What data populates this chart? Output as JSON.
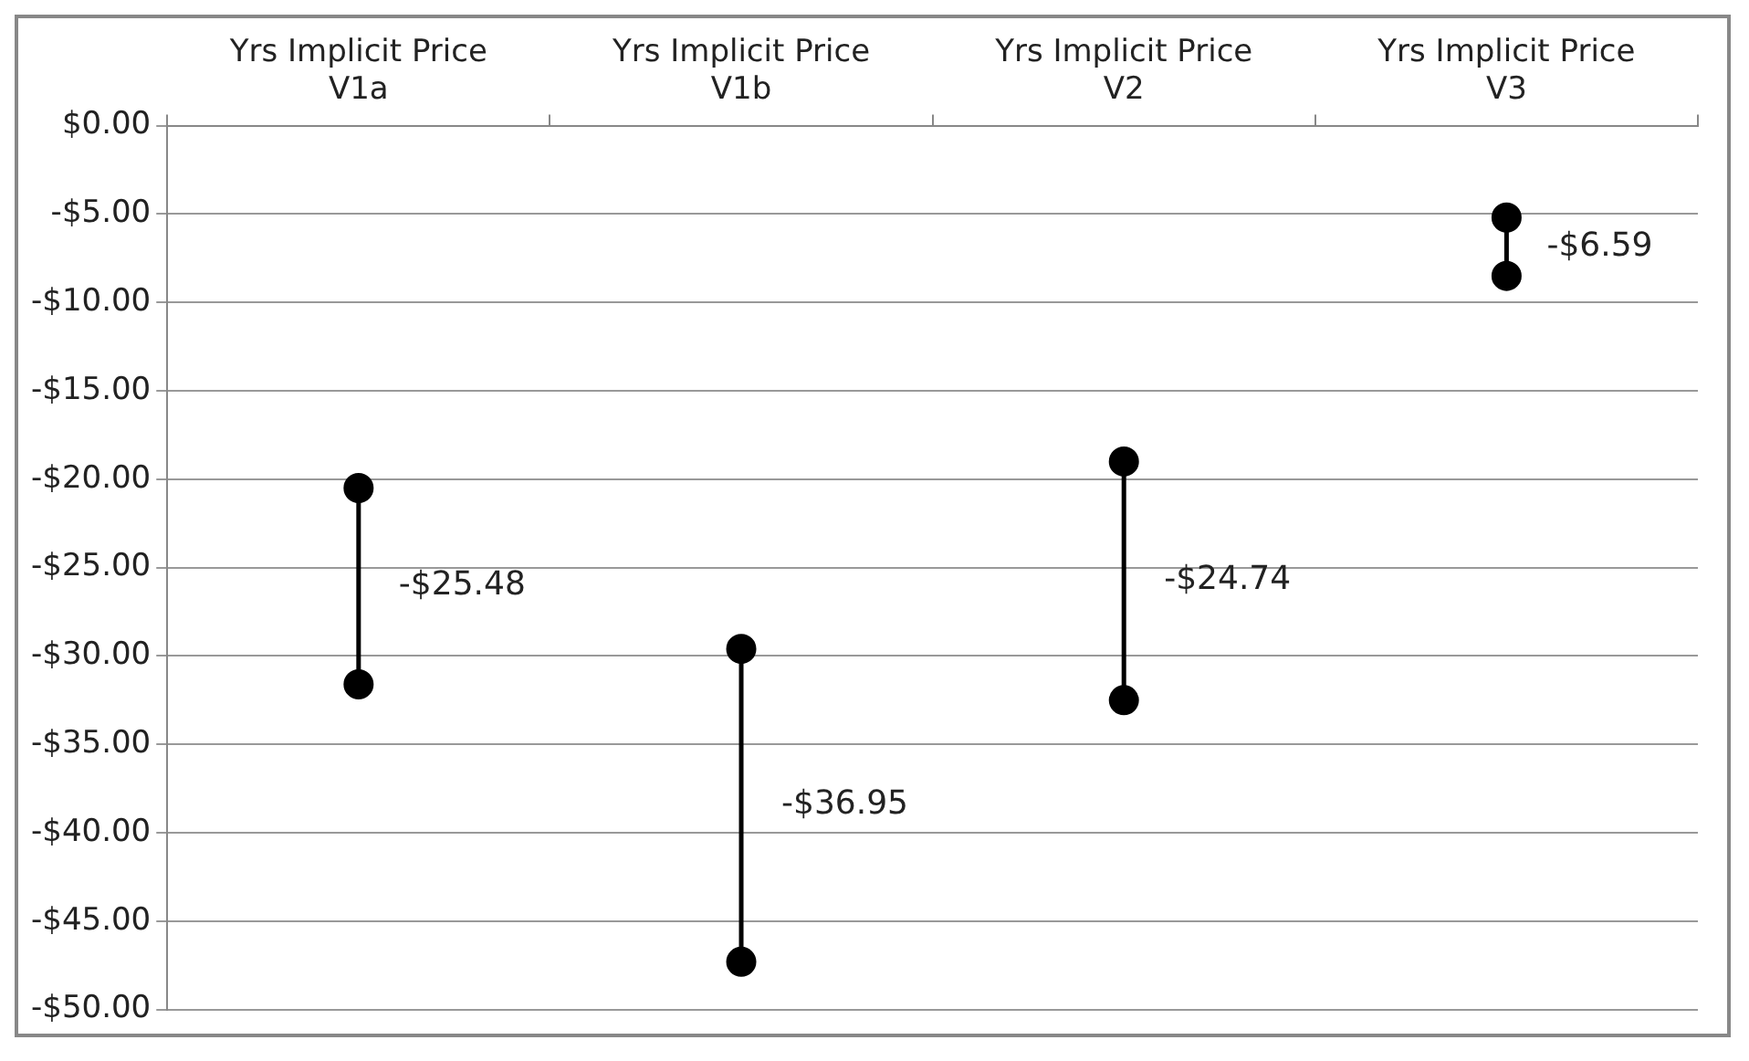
{
  "chart_data": {
    "type": "line",
    "categories": [
      "Yrs Implicit Price V1a",
      "Yrs Implicit Price V1b",
      "Yrs Implicit Price V2",
      "Yrs Implicit Price V3"
    ],
    "series": [
      {
        "color": "#000000",
        "x": [
          "Yrs Implicit Price V1a",
          "Yrs Implicit Price V1a"
        ],
        "values": [
          -31.6,
          -20.5
        ]
      },
      {
        "color": "#000000",
        "x": [
          "Yrs Implicit Price V1b",
          "Yrs Implicit Price V1b"
        ],
        "values": [
          -47.3,
          -29.6
        ]
      },
      {
        "color": "#000000",
        "x": [
          "Yrs Implicit Price V2",
          "Yrs Implicit Price V2"
        ],
        "values": [
          -32.5,
          -19.0
        ]
      },
      {
        "color": "#000000",
        "x": [
          "Yrs Implicit Price V3",
          "Yrs Implicit Price V3"
        ],
        "values": [
          -8.5,
          -5.2
        ]
      }
    ],
    "ylim": [
      -50,
      0
    ],
    "yticks": [
      {
        "value": 0,
        "label": "$0.00"
      },
      {
        "value": -5,
        "label": "-$5.00"
      },
      {
        "value": -10,
        "label": "-$10.00"
      },
      {
        "value": -15,
        "label": "-$15.00"
      },
      {
        "value": -20,
        "label": "-$20.00"
      },
      {
        "value": -25,
        "label": "-$25.00"
      },
      {
        "value": -30,
        "label": "-$30.00"
      },
      {
        "value": -35,
        "label": "-$35.00"
      },
      {
        "value": -40,
        "label": "-$40.00"
      },
      {
        "value": -45,
        "label": "-$45.00"
      },
      {
        "value": -50,
        "label": "-$50.00"
      }
    ],
    "grid": "y",
    "legend": false,
    "marker": "circle",
    "line_style": "solid",
    "annotations": [
      "-$25.48",
      "-$36.95",
      "-$24.74",
      "-$6.59"
    ]
  }
}
